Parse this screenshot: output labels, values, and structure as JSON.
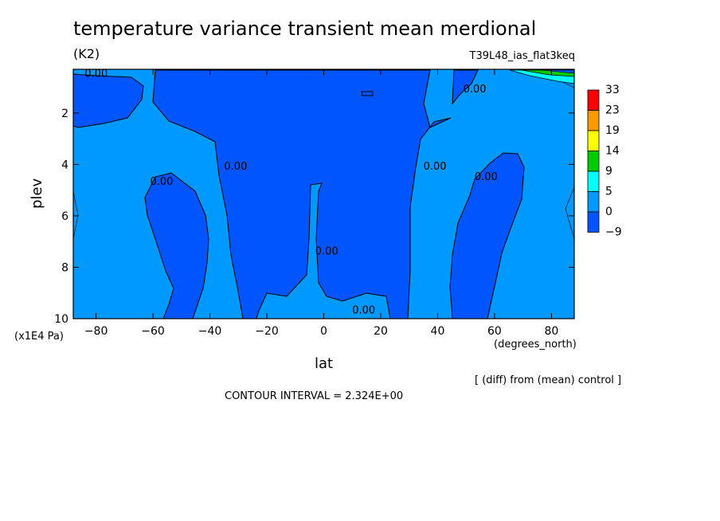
{
  "chart_data": {
    "type": "contour",
    "title": "temperature variance transient mean merdional",
    "units": "(K2)",
    "dataset": "T39L48_ias_flat3keq",
    "xlabel": "lat",
    "x_units": "(degrees_north)",
    "ylabel": "plev",
    "y_units": "(x1E4 Pa)",
    "x_ticks": [
      -80,
      -60,
      -40,
      -20,
      0,
      20,
      40,
      60,
      80
    ],
    "y_ticks": [
      2,
      4,
      6,
      8,
      10
    ],
    "xlim": [
      -88,
      88
    ],
    "ylim": [
      10,
      0.3
    ],
    "colorbar": {
      "levels": [
        "33",
        "23",
        "19",
        "14",
        "9",
        "5",
        "0",
        "-9"
      ],
      "colors": [
        "#ff0000",
        "#ff9900",
        "#ffff00",
        "#00cc00",
        "#00ffff",
        "#0099ff",
        "#0055ff"
      ]
    },
    "contour_labels": [
      {
        "text": "0.00",
        "x": -84,
        "y": 0.6
      },
      {
        "text": "0.00",
        "x": -61,
        "y": 4.8
      },
      {
        "text": "0.00",
        "x": -35,
        "y": 4.2
      },
      {
        "text": "0.00",
        "x": -3,
        "y": 7.5
      },
      {
        "text": "0.00",
        "x": 10,
        "y": 9.8
      },
      {
        "text": "0.00",
        "x": 35,
        "y": 4.2
      },
      {
        "text": "0.00",
        "x": 49,
        "y": 1.2
      },
      {
        "text": "0.00",
        "x": 53,
        "y": 4.6
      }
    ],
    "footer_note": "[ (diff) from (mean) control ]",
    "contour_interval": "CONTOUR INTERVAL = 2.324E+00"
  }
}
